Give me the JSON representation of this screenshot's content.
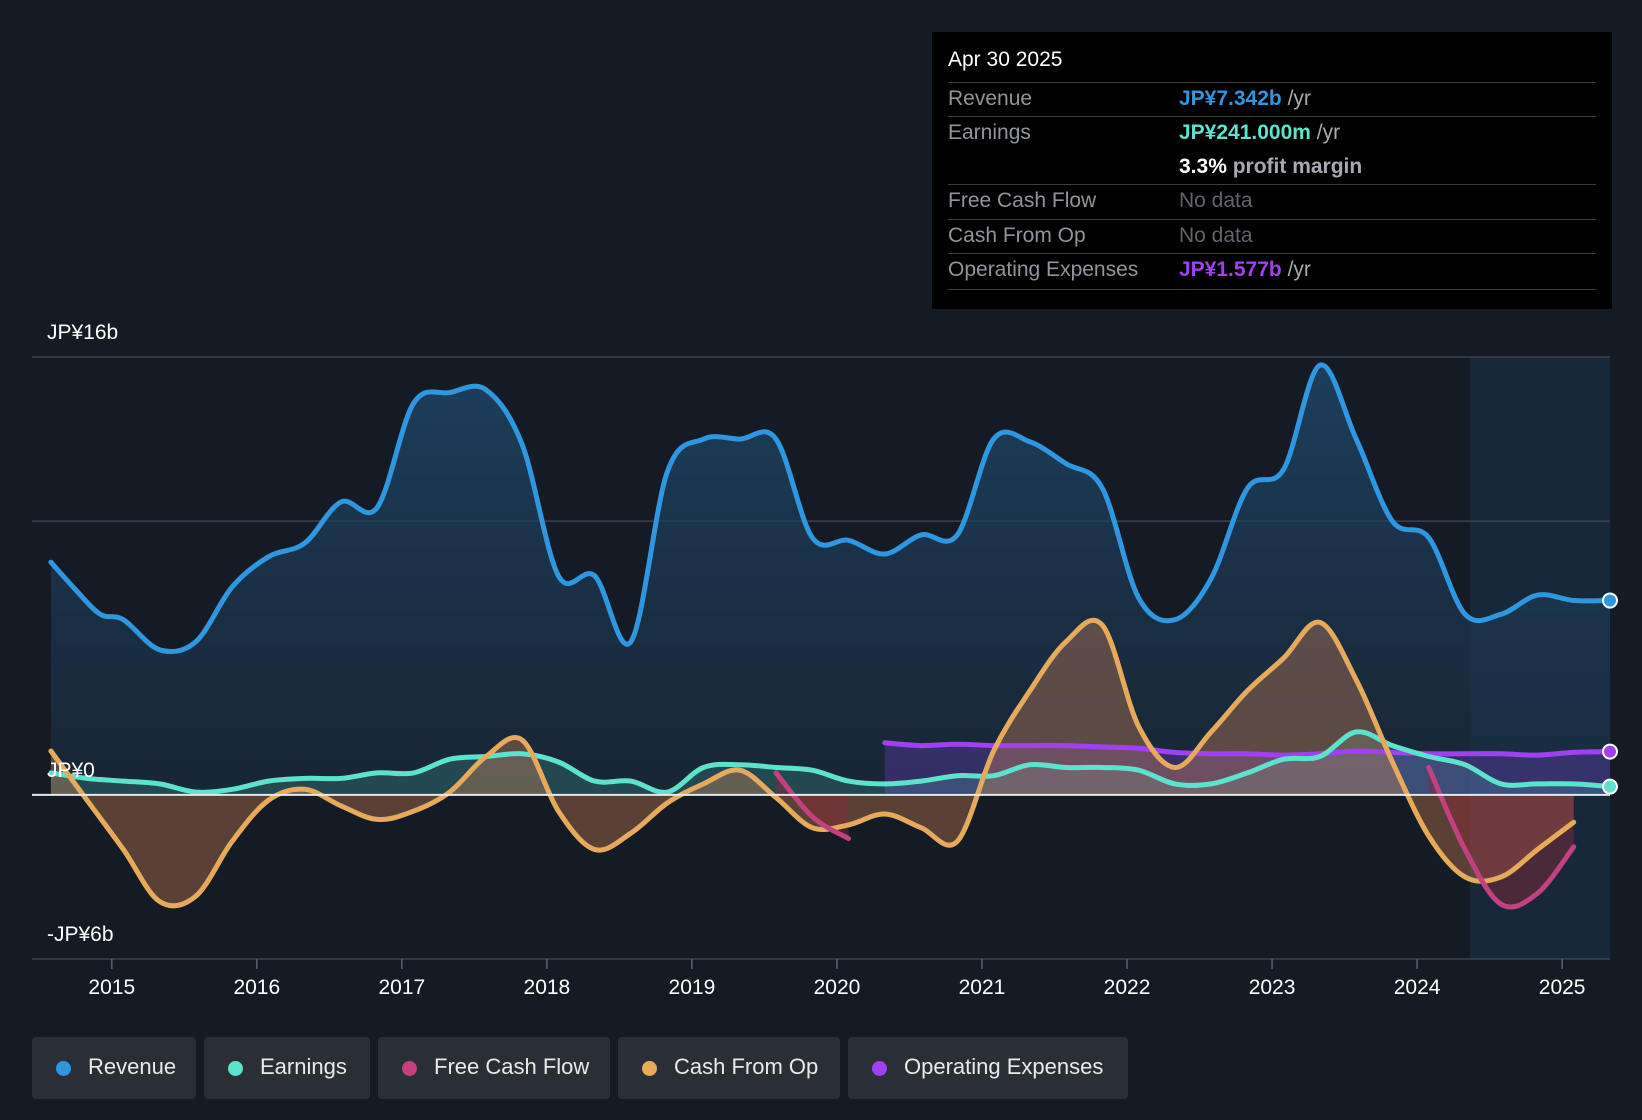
{
  "chart_data": {
    "type": "area",
    "xlim": [
      2014.45,
      2025.33
    ],
    "ylim": [
      -6,
      16
    ],
    "y_labels": [
      "JP¥16b",
      "JP¥0",
      "-JP¥6b"
    ],
    "x_ticks": [
      2015,
      2016,
      2017,
      2018,
      2019,
      2020,
      2021,
      2022,
      2023,
      2024,
      2025
    ],
    "x_tick_labels": [
      "2015",
      "2016",
      "2017",
      "2018",
      "2019",
      "2020",
      "2021",
      "2022",
      "2023",
      "2024",
      "2025"
    ],
    "forecast_start": 2024.33,
    "series": [
      {
        "name": "Revenue",
        "color": "#2f96e0",
        "fill": true,
        "x": [
          2014.58,
          2014.75,
          2014.92,
          2015.08,
          2015.33,
          2015.58,
          2015.83,
          2016.08,
          2016.33,
          2016.58,
          2016.83,
          2017.08,
          2017.33,
          2017.58,
          2017.83,
          2018.08,
          2018.33,
          2018.58,
          2018.83,
          2019.08,
          2019.33,
          2019.58,
          2019.83,
          2020.08,
          2020.33,
          2020.58,
          2020.83,
          2021.08,
          2021.33,
          2021.58,
          2021.83,
          2022.08,
          2022.33,
          2022.58,
          2022.83,
          2023.08,
          2023.33,
          2023.58,
          2023.83,
          2024.08,
          2024.33,
          2024.58,
          2024.83,
          2025.08,
          2025.33
        ],
        "values": [
          8.5,
          7.5,
          6.6,
          6.4,
          5.3,
          5.6,
          7.6,
          8.7,
          9.2,
          10.7,
          10.5,
          14.3,
          14.7,
          14.8,
          12.8,
          8.0,
          8.0,
          5.6,
          11.8,
          13.0,
          13.0,
          13.0,
          9.4,
          9.3,
          8.8,
          9.5,
          9.5,
          13.0,
          12.9,
          12.1,
          11.2,
          7.2,
          6.4,
          7.9,
          11.2,
          11.9,
          15.7,
          13.0,
          10.0,
          9.4,
          6.6,
          6.6,
          7.3,
          7.1,
          7.1
        ]
      },
      {
        "name": "Earnings",
        "color": "#5de3cd",
        "fill": true,
        "x": [
          2014.58,
          2014.83,
          2015.08,
          2015.33,
          2015.58,
          2015.83,
          2016.08,
          2016.33,
          2016.58,
          2016.83,
          2017.08,
          2017.33,
          2017.58,
          2017.83,
          2018.08,
          2018.33,
          2018.58,
          2018.83,
          2019.08,
          2019.33,
          2019.58,
          2019.83,
          2020.08,
          2020.33,
          2020.58,
          2020.83,
          2021.08,
          2021.33,
          2021.58,
          2021.83,
          2022.08,
          2022.33,
          2022.58,
          2022.83,
          2023.08,
          2023.33,
          2023.58,
          2023.83,
          2024.08,
          2024.33,
          2024.58,
          2024.83,
          2025.08,
          2025.33
        ],
        "values": [
          0.8,
          0.6,
          0.5,
          0.4,
          0.1,
          0.2,
          0.5,
          0.6,
          0.6,
          0.8,
          0.8,
          1.3,
          1.4,
          1.5,
          1.2,
          0.5,
          0.5,
          0.1,
          1.0,
          1.1,
          1.0,
          0.9,
          0.5,
          0.4,
          0.5,
          0.7,
          0.7,
          1.1,
          1.0,
          1.0,
          0.9,
          0.4,
          0.4,
          0.8,
          1.3,
          1.4,
          2.3,
          1.8,
          1.4,
          1.1,
          0.4,
          0.4,
          0.4,
          0.3
        ]
      },
      {
        "name": "Free Cash Flow",
        "color": "#c2417f",
        "fill": true,
        "x": [
          2019.58,
          2019.83,
          2020.08
        ],
        "values": [
          0.8,
          -0.8,
          -1.6
        ],
        "x2": [
          2024.08,
          2024.33,
          2024.58,
          2024.83,
          2025.08
        ],
        "values2": [
          1.0,
          -2.0,
          -4.0,
          -3.6,
          -1.9
        ]
      },
      {
        "name": "Cash From Op",
        "color": "#e6ab5a",
        "fill": true,
        "x": [
          2014.58,
          2014.83,
          2015.08,
          2015.33,
          2015.58,
          2015.83,
          2016.08,
          2016.33,
          2016.58,
          2016.83,
          2017.08,
          2017.33,
          2017.58,
          2017.83,
          2018.08,
          2018.33,
          2018.58,
          2018.83,
          2019.08,
          2019.33,
          2019.58,
          2019.83,
          2020.08,
          2020.33,
          2020.58,
          2020.83,
          2021.08,
          2021.33,
          2021.58,
          2021.83,
          2022.08,
          2022.33,
          2022.58,
          2022.83,
          2023.08,
          2023.33,
          2023.58,
          2023.83,
          2024.08,
          2024.33,
          2024.58,
          2024.83,
          2025.08
        ],
        "values": [
          1.6,
          -0.2,
          -2.0,
          -3.9,
          -3.7,
          -1.7,
          -0.2,
          0.2,
          -0.4,
          -0.9,
          -0.6,
          0.1,
          1.4,
          2.0,
          -0.6,
          -2.0,
          -1.4,
          -0.3,
          0.4,
          0.9,
          -0.1,
          -1.2,
          -1.1,
          -0.7,
          -1.2,
          -1.7,
          1.6,
          3.8,
          5.6,
          6.2,
          2.5,
          1.0,
          2.3,
          3.8,
          5.0,
          6.3,
          4.2,
          1.2,
          -1.5,
          -3.0,
          -3.0,
          -2.0,
          -1.0
        ]
      },
      {
        "name": "Operating Expenses",
        "color": "#a040f0",
        "fill": true,
        "x": [
          2020.33,
          2020.58,
          2020.83,
          2021.08,
          2021.33,
          2021.58,
          2021.83,
          2022.08,
          2022.33,
          2022.58,
          2022.83,
          2023.08,
          2023.33,
          2023.58,
          2023.83,
          2024.08,
          2024.33,
          2024.58,
          2024.83,
          2025.08,
          2025.33
        ],
        "values": [
          1.9,
          1.8,
          1.85,
          1.8,
          1.8,
          1.8,
          1.75,
          1.7,
          1.55,
          1.5,
          1.5,
          1.45,
          1.5,
          1.6,
          1.55,
          1.5,
          1.5,
          1.5,
          1.45,
          1.55,
          1.58
        ]
      }
    ]
  },
  "tooltip": {
    "date": "Apr 30 2025",
    "revenue_label": "Revenue",
    "revenue_value": "JP¥7.342b",
    "revenue_unit": "/yr",
    "earnings_label": "Earnings",
    "earnings_value": "JP¥241.000m",
    "earnings_unit": "/yr",
    "margin_value": "3.3%",
    "margin_text": "profit margin",
    "fcf_label": "Free Cash Flow",
    "fcf_value": "No data",
    "cfo_label": "Cash From Op",
    "cfo_value": "No data",
    "opex_label": "Operating Expenses",
    "opex_value": "JP¥1.577b",
    "opex_unit": "/yr",
    "colors": {
      "revenue": "#2f96e0",
      "earnings": "#5de3cd",
      "opex": "#a040f0"
    }
  },
  "legend": [
    {
      "label": "Revenue",
      "color": "#2f96e0"
    },
    {
      "label": "Earnings",
      "color": "#5de3cd"
    },
    {
      "label": "Free Cash Flow",
      "color": "#c2417f"
    },
    {
      "label": "Cash From Op",
      "color": "#e6ab5a"
    },
    {
      "label": "Operating Expenses",
      "color": "#a040f0"
    }
  ]
}
